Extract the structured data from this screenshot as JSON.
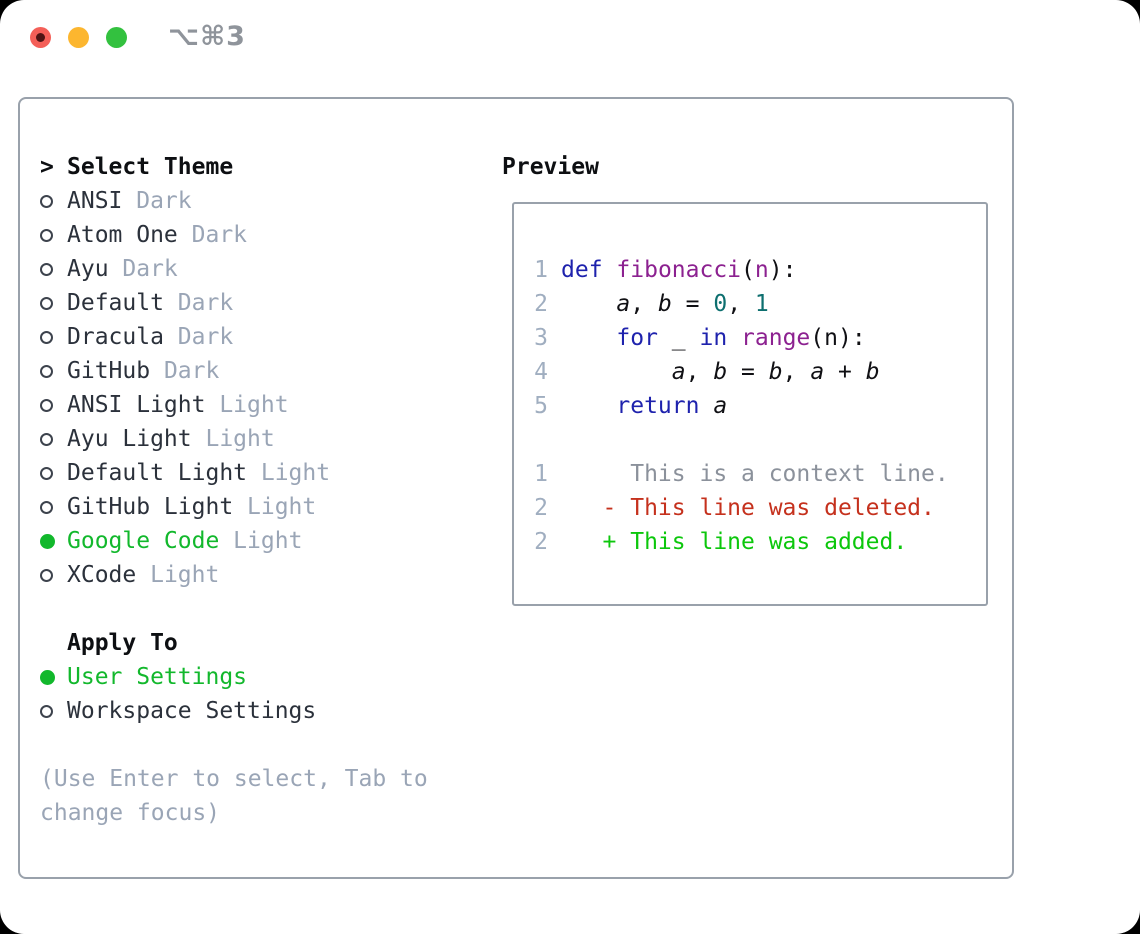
{
  "window": {
    "title": "⌥⌘3",
    "traffic_lights": [
      "close",
      "minimize",
      "zoom"
    ]
  },
  "colors": {
    "accent_green": "#12b82c",
    "keyword_blue": "#1e22ad",
    "function_purple": "#8c2190",
    "literal_teal": "#0d6f6f",
    "diff_deleted_red": "#c5311d",
    "diff_added_green": "#0cc70c",
    "muted_gray": "#9aa5b6",
    "border_gray": "#99a1ab"
  },
  "left": {
    "header_marker": ">",
    "header": "Select Theme",
    "themes": [
      {
        "name": "ANSI",
        "variant": "Dark",
        "selected": false
      },
      {
        "name": "Atom One",
        "variant": "Dark",
        "selected": false
      },
      {
        "name": "Ayu",
        "variant": "Dark",
        "selected": false
      },
      {
        "name": "Default",
        "variant": "Dark",
        "selected": false
      },
      {
        "name": "Dracula",
        "variant": "Dark",
        "selected": false
      },
      {
        "name": "GitHub",
        "variant": "Dark",
        "selected": false
      },
      {
        "name": "ANSI Light",
        "variant": "Light",
        "selected": false
      },
      {
        "name": "Ayu Light",
        "variant": "Light",
        "selected": false
      },
      {
        "name": "Default Light",
        "variant": "Light",
        "selected": false
      },
      {
        "name": "GitHub Light",
        "variant": "Light",
        "selected": false
      },
      {
        "name": "Google Code",
        "variant": "Light",
        "selected": true
      },
      {
        "name": "XCode",
        "variant": "Light",
        "selected": false
      }
    ],
    "apply_to": {
      "header": "Apply To",
      "options": [
        {
          "name": "User Settings",
          "selected": true
        },
        {
          "name": "Workspace Settings",
          "selected": false
        }
      ]
    },
    "hint_lines": [
      "(Use Enter to select, Tab to",
      "change focus)"
    ]
  },
  "preview": {
    "header": "Preview",
    "lines": [
      {
        "num": "1",
        "tokens": [
          [
            "kw",
            "def"
          ],
          [
            "pln",
            " "
          ],
          [
            "fn",
            "fibonacci"
          ],
          [
            "pln",
            "("
          ],
          [
            "fn",
            "n"
          ],
          [
            "pln",
            "):"
          ]
        ]
      },
      {
        "num": "2",
        "tokens": [
          [
            "pln",
            "    "
          ],
          [
            "var",
            "a"
          ],
          [
            "pln",
            ", "
          ],
          [
            "var",
            "b"
          ],
          [
            "pln",
            " = "
          ],
          [
            "lit",
            "0"
          ],
          [
            "pln",
            ", "
          ],
          [
            "lit",
            "1"
          ]
        ]
      },
      {
        "num": "3",
        "tokens": [
          [
            "pln",
            "    "
          ],
          [
            "kw",
            "for"
          ],
          [
            "pln",
            " _ "
          ],
          [
            "kw",
            "in"
          ],
          [
            "pln",
            " "
          ],
          [
            "fn",
            "range"
          ],
          [
            "pln",
            "("
          ],
          [
            "pln",
            "n"
          ],
          [
            "pln",
            "):"
          ]
        ]
      },
      {
        "num": "4",
        "tokens": [
          [
            "pln",
            "        "
          ],
          [
            "var",
            "a"
          ],
          [
            "pln",
            ", "
          ],
          [
            "var",
            "b"
          ],
          [
            "pln",
            " = "
          ],
          [
            "var",
            "b"
          ],
          [
            "pln",
            ", "
          ],
          [
            "var",
            "a"
          ],
          [
            "pln",
            " + "
          ],
          [
            "var",
            "b"
          ]
        ]
      },
      {
        "num": "5",
        "tokens": [
          [
            "pln",
            "    "
          ],
          [
            "kw",
            "return"
          ],
          [
            "pln",
            " "
          ],
          [
            "var",
            "a"
          ]
        ]
      },
      {
        "num": "",
        "tokens": []
      },
      {
        "num": "1",
        "tokens": [
          [
            "ctx",
            "     This is a context line."
          ]
        ]
      },
      {
        "num": "2",
        "tokens": [
          [
            "del",
            "   - This line was deleted."
          ]
        ]
      },
      {
        "num": "2",
        "tokens": [
          [
            "add",
            "   + This line was added."
          ]
        ]
      }
    ]
  }
}
